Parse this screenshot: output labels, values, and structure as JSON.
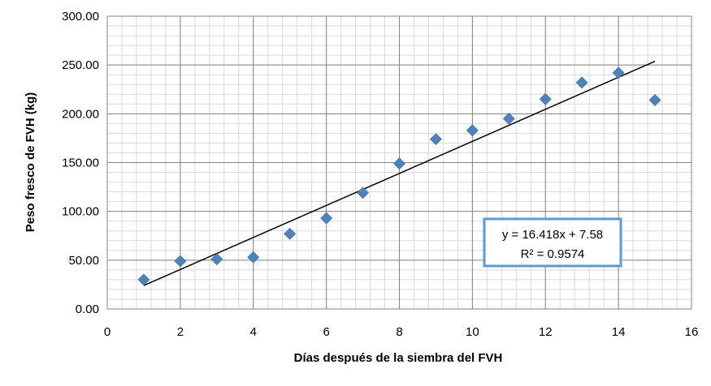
{
  "chart_data": {
    "type": "scatter",
    "title": "",
    "xlabel": "Días después de la siembra del FVH",
    "ylabel": "Peso fresco de FVH (kg)",
    "xlim": [
      0,
      16
    ],
    "ylim": [
      0,
      300
    ],
    "x_ticks": [
      0,
      2,
      4,
      6,
      8,
      10,
      12,
      14,
      16
    ],
    "y_ticks": [
      0,
      50,
      100,
      150,
      200,
      250,
      300
    ],
    "x_tick_labels": [
      "0",
      "2",
      "4",
      "6",
      "8",
      "10",
      "12",
      "14",
      "16"
    ],
    "y_tick_labels": [
      "0.00",
      "50.00",
      "100.00",
      "150.00",
      "200.00",
      "250.00",
      "300.00"
    ],
    "grid": true,
    "minor_grid": true,
    "marker": "diamond",
    "marker_color": "#4F81BD",
    "trendline_color": "#000000",
    "series": [
      {
        "points": [
          {
            "x": 1,
            "y": 30
          },
          {
            "x": 2,
            "y": 49
          },
          {
            "x": 3,
            "y": 51
          },
          {
            "x": 4,
            "y": 53
          },
          {
            "x": 5,
            "y": 77
          },
          {
            "x": 6,
            "y": 93
          },
          {
            "x": 7,
            "y": 119
          },
          {
            "x": 8,
            "y": 149
          },
          {
            "x": 9,
            "y": 174
          },
          {
            "x": 10,
            "y": 183
          },
          {
            "x": 11,
            "y": 195
          },
          {
            "x": 12,
            "y": 215
          },
          {
            "x": 13,
            "y": 232
          },
          {
            "x": 14,
            "y": 242
          },
          {
            "x": 15,
            "y": 214
          }
        ]
      }
    ],
    "trendline": {
      "slope": 16.418,
      "intercept": 7.58,
      "x_range": [
        1,
        15
      ],
      "equation_label": "y = 16.418x + 7.58",
      "r2_label": "R² = 0.9574",
      "box_border_color": "#5B9BD5"
    }
  }
}
